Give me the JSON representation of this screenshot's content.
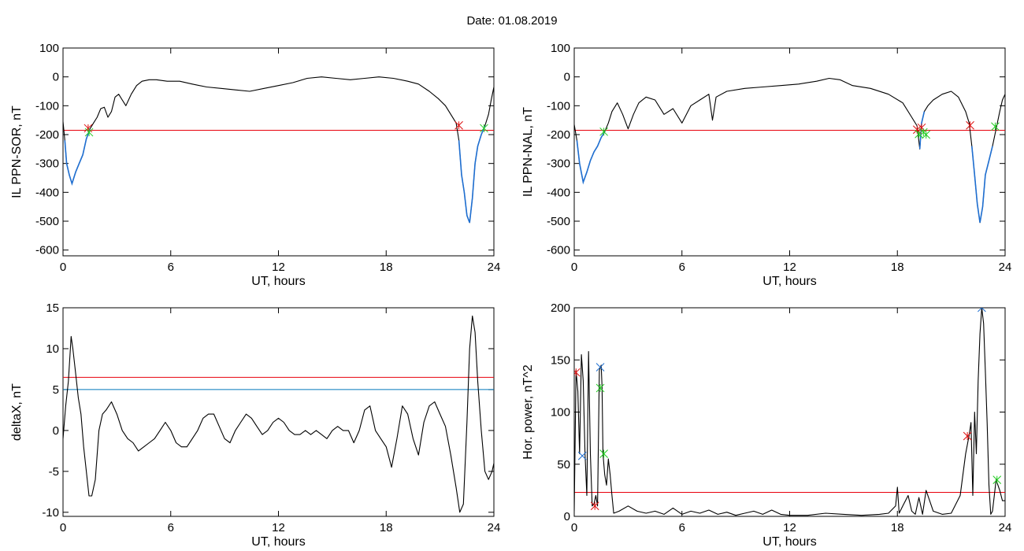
{
  "figure": {
    "title": "Date:  01.08.2019"
  },
  "colors": {
    "trace": "#000000",
    "threshold_red": "#e8000b",
    "threshold_blue": "#0077bb",
    "highlight_blue": "#1f6fd1",
    "marker_green": "#22cc22",
    "marker_red": "#dd1111",
    "marker_blue": "#1f6fd1"
  },
  "chart_data": [
    {
      "type": "line",
      "title": "",
      "xlabel": "UT, hours",
      "ylabel": "IL PPN-SOR, nT",
      "xlim": [
        0,
        24
      ],
      "ylim": [
        -620,
        100
      ],
      "xticks": [
        0,
        6,
        12,
        18,
        24
      ],
      "yticks": [
        100,
        0,
        -100,
        -200,
        -300,
        -400,
        -500,
        -600
      ],
      "threshold": -185,
      "series": [
        {
          "x": [
            0,
            0.1,
            0.2,
            0.35,
            0.5,
            0.7,
            0.9,
            1.1,
            1.3,
            1.5,
            1.7,
            1.9,
            2.1,
            2.3,
            2.5,
            2.7,
            2.9,
            3.1,
            3.3,
            3.5,
            3.8,
            4.1,
            4.4,
            4.8,
            5.2,
            5.8,
            6.5,
            7.2,
            8,
            8.8,
            9.6,
            10.4,
            11.2,
            12,
            12.8,
            13.6,
            14.4,
            15.2,
            16,
            16.8,
            17.6,
            18.4,
            19.2,
            19.8,
            20.4,
            20.9,
            21.3,
            21.6,
            21.9,
            22.05,
            22.2,
            22.35,
            22.5,
            22.65,
            22.8,
            22.95,
            23.1,
            23.3,
            23.5,
            23.7,
            23.85,
            24
          ],
          "y": [
            -155,
            -220,
            -300,
            -340,
            -370,
            -330,
            -300,
            -270,
            -215,
            -180,
            -160,
            -140,
            -110,
            -105,
            -140,
            -120,
            -70,
            -60,
            -80,
            -100,
            -60,
            -30,
            -15,
            -10,
            -10,
            -15,
            -15,
            -25,
            -35,
            -40,
            -45,
            -50,
            -40,
            -30,
            -20,
            -5,
            0,
            -5,
            -10,
            -5,
            0,
            -5,
            -15,
            -25,
            -50,
            -75,
            -100,
            -130,
            -160,
            -220,
            -340,
            -400,
            -480,
            -505,
            -420,
            -300,
            -240,
            -200,
            -170,
            -130,
            -80,
            -35
          ]
        }
      ],
      "highlight_ranges": [
        [
          0.05,
          1.5
        ],
        [
          22.0,
          23.6
        ]
      ],
      "markers": [
        {
          "x": 1.4,
          "y": -178,
          "color": "red"
        },
        {
          "x": 1.45,
          "y": -192,
          "color": "green"
        },
        {
          "x": 22.05,
          "y": -168,
          "color": "red"
        },
        {
          "x": 23.45,
          "y": -178,
          "color": "green"
        }
      ]
    },
    {
      "type": "line",
      "title": "",
      "xlabel": "UT, hours",
      "ylabel": "IL PPN-NAL, nT",
      "xlim": [
        0,
        24
      ],
      "ylim": [
        -620,
        100
      ],
      "xticks": [
        0,
        6,
        12,
        18,
        24
      ],
      "yticks": [
        100,
        0,
        -100,
        -200,
        -300,
        -400,
        -500,
        -600
      ],
      "threshold": -185,
      "series": [
        {
          "x": [
            0,
            0.15,
            0.3,
            0.5,
            0.7,
            0.9,
            1.1,
            1.3,
            1.5,
            1.7,
            1.9,
            2.1,
            2.4,
            2.7,
            3.0,
            3.3,
            3.6,
            4.0,
            4.5,
            5.0,
            5.5,
            6.0,
            6.5,
            7.0,
            7.5,
            7.7,
            7.9,
            8.5,
            9.5,
            10.5,
            11.5,
            12.5,
            13.5,
            14.2,
            14.8,
            15.5,
            16.5,
            17.5,
            18.3,
            18.8,
            19.1,
            19.25,
            19.35,
            19.5,
            19.7,
            20.0,
            20.5,
            21.0,
            21.4,
            21.8,
            22.0,
            22.15,
            22.3,
            22.45,
            22.6,
            22.75,
            22.9,
            23.1,
            23.3,
            23.5,
            23.7,
            23.85,
            24
          ],
          "y": [
            -165,
            -220,
            -300,
            -365,
            -330,
            -290,
            -260,
            -240,
            -210,
            -190,
            -160,
            -120,
            -90,
            -130,
            -180,
            -130,
            -90,
            -70,
            -80,
            -130,
            -110,
            -160,
            -100,
            -80,
            -60,
            -150,
            -70,
            -50,
            -40,
            -35,
            -30,
            -25,
            -15,
            -5,
            -10,
            -30,
            -40,
            -60,
            -90,
            -140,
            -170,
            -250,
            -160,
            -120,
            -100,
            -80,
            -60,
            -50,
            -70,
            -120,
            -160,
            -240,
            -340,
            -440,
            -505,
            -450,
            -340,
            -290,
            -240,
            -180,
            -120,
            -80,
            -60
          ]
        }
      ],
      "highlight_ranges": [
        [
          0.1,
          1.7
        ],
        [
          19.15,
          19.6
        ],
        [
          22.05,
          23.4
        ]
      ],
      "markers": [
        {
          "x": 1.65,
          "y": -190,
          "color": "green"
        },
        {
          "x": 19.1,
          "y": -183,
          "color": "red"
        },
        {
          "x": 19.2,
          "y": -198,
          "color": "green"
        },
        {
          "x": 19.35,
          "y": -176,
          "color": "red"
        },
        {
          "x": 19.45,
          "y": -192,
          "color": "green"
        },
        {
          "x": 19.6,
          "y": -200,
          "color": "green"
        },
        {
          "x": 22.05,
          "y": -168,
          "color": "red"
        },
        {
          "x": 23.45,
          "y": -172,
          "color": "green"
        }
      ]
    },
    {
      "type": "line",
      "title": "",
      "xlabel": "UT, hours",
      "ylabel": "deltaX, nT",
      "xlim": [
        0,
        24
      ],
      "ylim": [
        -10.5,
        15
      ],
      "xticks": [
        0,
        6,
        12,
        18,
        24
      ],
      "yticks": [
        15,
        10,
        5,
        0,
        -5,
        -10
      ],
      "thresholds": [
        {
          "y": 6.5,
          "color": "red"
        },
        {
          "y": 5.0,
          "color": "blue"
        }
      ],
      "series": [
        {
          "x": [
            0,
            0.15,
            0.3,
            0.45,
            0.55,
            0.7,
            0.85,
            1.0,
            1.15,
            1.3,
            1.45,
            1.6,
            1.8,
            2.0,
            2.2,
            2.4,
            2.7,
            3.0,
            3.3,
            3.6,
            3.9,
            4.2,
            4.5,
            4.8,
            5.1,
            5.4,
            5.7,
            6.0,
            6.3,
            6.6,
            6.9,
            7.2,
            7.5,
            7.8,
            8.1,
            8.4,
            8.7,
            9.0,
            9.3,
            9.6,
            9.9,
            10.2,
            10.5,
            10.8,
            11.1,
            11.4,
            11.7,
            12.0,
            12.3,
            12.6,
            12.9,
            13.2,
            13.5,
            13.8,
            14.1,
            14.4,
            14.7,
            15.0,
            15.3,
            15.6,
            15.9,
            16.2,
            16.5,
            16.8,
            17.1,
            17.4,
            17.7,
            18.0,
            18.3,
            18.6,
            18.9,
            19.2,
            19.5,
            19.8,
            20.1,
            20.4,
            20.7,
            21.0,
            21.3,
            21.6,
            21.9,
            22.1,
            22.3,
            22.5,
            22.65,
            22.8,
            22.95,
            23.1,
            23.3,
            23.5,
            23.7,
            23.9,
            24
          ],
          "y": [
            -1,
            3,
            6,
            11.5,
            10,
            7,
            4,
            2,
            -2,
            -5,
            -8,
            -8,
            -6,
            0,
            2,
            2.5,
            3.5,
            2,
            0,
            -1,
            -1.5,
            -2.5,
            -2,
            -1.5,
            -1,
            0,
            1,
            0,
            -1.5,
            -2,
            -2,
            -1,
            0,
            1.5,
            2,
            2,
            0.5,
            -1,
            -1.5,
            0,
            1,
            2,
            1.5,
            0.5,
            -0.5,
            0,
            1,
            1.5,
            1,
            0,
            -0.5,
            -0.5,
            0,
            -0.5,
            0,
            -0.5,
            -1,
            0,
            0.5,
            0,
            0,
            -1.5,
            0,
            2.5,
            3,
            0,
            -1,
            -2,
            -4.5,
            -1,
            3,
            2,
            -1,
            -3,
            1,
            3,
            3.5,
            2,
            0.5,
            -3,
            -7,
            -10,
            -9,
            1,
            10,
            14,
            12,
            6,
            0,
            -5,
            -6,
            -5,
            -4
          ]
        }
      ]
    },
    {
      "type": "line",
      "title": "",
      "xlabel": "UT, hours",
      "ylabel": "Hor. power, nT^2",
      "xlim": [
        0,
        24
      ],
      "ylim": [
        0,
        200
      ],
      "xticks": [
        0,
        6,
        12,
        18,
        24
      ],
      "yticks": [
        200,
        150,
        100,
        50,
        0
      ],
      "threshold": 23,
      "series": [
        {
          "x": [
            0,
            0.1,
            0.2,
            0.3,
            0.4,
            0.5,
            0.6,
            0.7,
            0.8,
            0.9,
            1.0,
            1.1,
            1.2,
            1.3,
            1.4,
            1.5,
            1.55,
            1.6,
            1.7,
            1.8,
            1.9,
            2.0,
            2.1,
            2.2,
            2.5,
            3.0,
            3.5,
            4.0,
            4.5,
            5.0,
            5.5,
            6.0,
            6.5,
            7.0,
            7.5,
            8.0,
            8.5,
            9.0,
            9.5,
            10.0,
            10.5,
            11.0,
            11.5,
            12.0,
            13.0,
            14.0,
            15.0,
            16.0,
            17.0,
            17.5,
            17.9,
            18.0,
            18.1,
            18.3,
            18.6,
            18.8,
            19.0,
            19.2,
            19.4,
            19.6,
            20.0,
            20.5,
            21.0,
            21.5,
            21.8,
            22.0,
            22.1,
            22.2,
            22.3,
            22.4,
            22.5,
            22.6,
            22.7,
            22.8,
            22.9,
            23.0,
            23.1,
            23.2,
            23.3,
            23.4,
            23.5,
            23.6,
            23.7,
            23.85,
            24
          ],
          "y": [
            5,
            140,
            120,
            60,
            155,
            130,
            60,
            20,
            158,
            60,
            10,
            12,
            20,
            10,
            140,
            145,
            125,
            60,
            40,
            30,
            55,
            40,
            20,
            3,
            5,
            10,
            5,
            3,
            5,
            2,
            8,
            2,
            5,
            3,
            6,
            2,
            4,
            1,
            3,
            5,
            2,
            6,
            2,
            1,
            1,
            3,
            2,
            1,
            2,
            3,
            10,
            28,
            3,
            10,
            20,
            5,
            2,
            18,
            2,
            25,
            5,
            2,
            3,
            20,
            60,
            78,
            90,
            20,
            100,
            60,
            130,
            175,
            200,
            185,
            140,
            90,
            30,
            2,
            5,
            20,
            35,
            30,
            25,
            15,
            15
          ]
        }
      ],
      "markers": [
        {
          "x": 0.1,
          "y": 138,
          "color": "red"
        },
        {
          "x": 0.45,
          "y": 58,
          "color": "blue"
        },
        {
          "x": 1.15,
          "y": 10,
          "color": "red"
        },
        {
          "x": 1.45,
          "y": 143,
          "color": "blue"
        },
        {
          "x": 1.45,
          "y": 123,
          "color": "green"
        },
        {
          "x": 1.65,
          "y": 60,
          "color": "green"
        },
        {
          "x": 21.9,
          "y": 77,
          "color": "red"
        },
        {
          "x": 22.7,
          "y": 200,
          "color": "blue"
        },
        {
          "x": 23.55,
          "y": 35,
          "color": "green"
        }
      ]
    }
  ]
}
